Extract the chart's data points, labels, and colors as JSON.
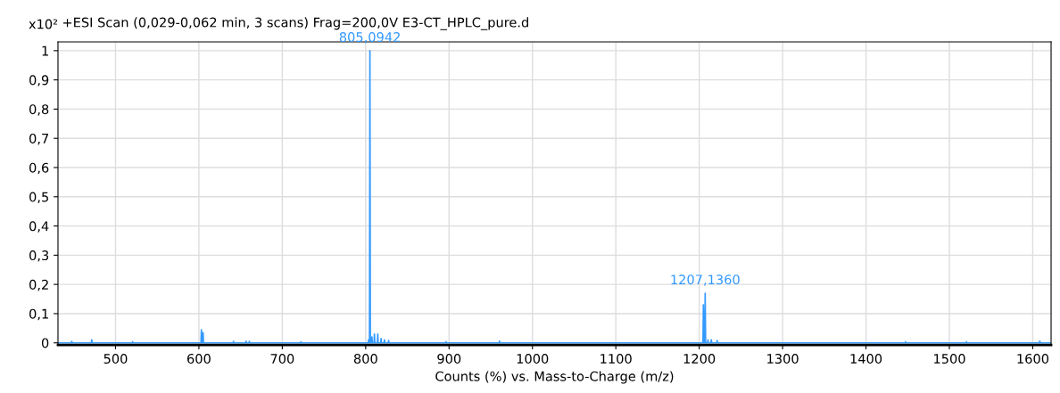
{
  "chart_data": {
    "type": "line",
    "title": "+ESI Scan (0,029-0,062 min, 3 scans) Frag=200,0V E3-CT_HPLC_pure.d",
    "xlabel": "Counts (%) vs. Mass-to-Charge (m/z)",
    "ylabel": "x10²",
    "xlim": [
      431,
      1622
    ],
    "xticks": [
      500,
      600,
      700,
      800,
      900,
      1000,
      1100,
      1200,
      1300,
      1400,
      1500,
      1600
    ],
    "ylim": [
      -0.007,
      1.03
    ],
    "yticks": [
      0,
      {
        "value": 0.1,
        "label": "0,1"
      },
      {
        "value": 0.2,
        "label": "0,2"
      },
      {
        "value": 0.3,
        "label": "0,3"
      },
      {
        "value": 0.4,
        "label": "0,4"
      },
      {
        "value": 0.5,
        "label": "0,5"
      },
      {
        "value": 0.6,
        "label": "0,6"
      },
      {
        "value": 0.7,
        "label": "0,7"
      },
      {
        "value": 0.8,
        "label": "0,8"
      },
      {
        "value": 0.9,
        "label": "0,9"
      },
      1
    ],
    "grid": true,
    "line_style": "solid",
    "series": [
      {
        "color": "#3399ff",
        "x": [
          431,
          447,
          447.5,
          448,
          471,
          471.5,
          472,
          520,
          520.5,
          521,
          602.5,
          603,
          603.5,
          604.5,
          605,
          605.5,
          641,
          641.5,
          642,
          656,
          656.5,
          657,
          660,
          660.5,
          661,
          722,
          722.5,
          723,
          803,
          803.5,
          804,
          804.6,
          805.0942,
          805.6,
          807,
          807.5,
          808,
          810,
          810.5,
          811,
          814,
          814.5,
          815,
          818,
          818.5,
          819,
          822,
          822.5,
          823,
          827,
          827.5,
          828,
          896,
          896.5,
          897,
          960,
          960.5,
          961,
          1204.5,
          1205,
          1205.6,
          1206.6,
          1207.136,
          1207.7,
          1210,
          1210.5,
          1211,
          1214,
          1214.5,
          1215,
          1221,
          1221.5,
          1222,
          1447,
          1447.5,
          1448,
          1520,
          1520.5,
          1521,
          1608,
          1608.5,
          1609,
          1622
        ],
        "values": [
          0,
          0,
          0.005,
          0,
          0,
          0.01,
          0,
          0,
          0.004,
          0,
          0,
          0.045,
          0,
          0,
          0.035,
          0,
          0,
          0.005,
          0,
          0,
          0.006,
          0,
          0,
          0.005,
          0,
          0,
          0.004,
          0,
          0,
          0.01,
          0,
          0,
          1.0,
          0,
          0,
          0.02,
          0,
          0,
          0.03,
          0,
          0,
          0.03,
          0,
          0,
          0.015,
          0,
          0,
          0.01,
          0,
          0,
          0.008,
          0,
          0,
          0.004,
          0,
          0,
          0.006,
          0,
          0,
          0.13,
          0,
          0,
          0.17,
          0,
          0,
          0.01,
          0,
          0,
          0.01,
          0,
          0,
          0.008,
          0,
          0,
          0.004,
          0,
          0,
          0.004,
          0,
          0,
          0.006,
          0,
          0
        ]
      }
    ],
    "annotations": [
      {
        "text": "805,0942",
        "x": 805.0942,
        "y": 1.0
      },
      {
        "text": "1207,1360",
        "x": 1207.136,
        "y": 0.17
      }
    ]
  }
}
